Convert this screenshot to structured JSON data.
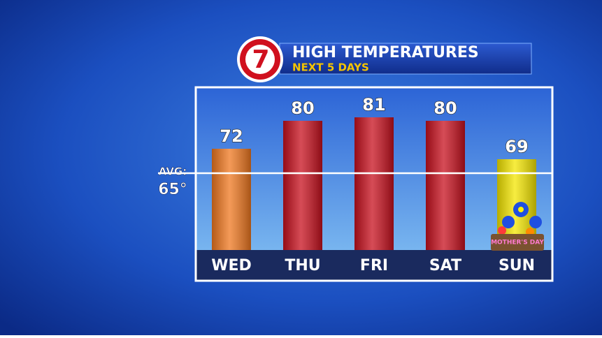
{
  "chart_data": {
    "type": "bar",
    "logo": "7",
    "title": "HIGH TEMPERATURES",
    "subtitle": "NEXT 5 DAYS",
    "categories": [
      "WED",
      "THU",
      "FRI",
      "SAT",
      "SUN"
    ],
    "values": [
      72,
      80,
      81,
      80,
      69
    ],
    "colors": [
      "#f07820",
      "#c8101e",
      "#c8101e",
      "#c8101e",
      "#f4e600"
    ],
    "ylim": [
      43,
      89
    ],
    "reference_line": {
      "label": "AVG:",
      "value": 65,
      "value_label": "65°"
    },
    "annotation": "MOTHER'S DAY"
  }
}
